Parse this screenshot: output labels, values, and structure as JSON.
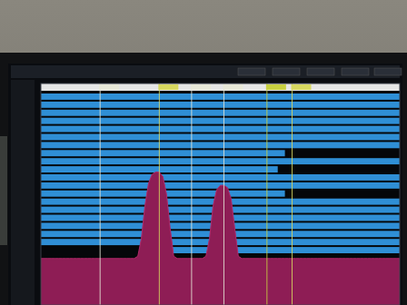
{
  "chart_data": {
    "type": "area",
    "x": [
      0,
      1,
      2,
      3,
      4,
      5,
      6,
      7,
      8,
      9,
      10,
      11,
      12,
      13,
      14,
      15,
      16,
      17,
      18,
      19,
      20,
      21,
      22,
      23,
      24,
      25,
      26,
      27,
      28,
      29,
      30,
      31,
      32,
      33,
      34,
      35,
      36,
      37,
      38,
      39,
      40,
      41,
      42,
      43,
      44,
      45,
      46,
      47,
      48,
      49,
      50,
      51,
      52,
      53,
      54,
      55,
      56,
      57,
      58,
      59,
      60,
      61,
      62,
      63,
      64,
      65,
      66,
      67,
      68,
      69,
      70,
      71,
      72,
      73,
      74,
      75,
      76,
      77,
      78,
      79,
      80,
      81,
      82,
      83,
      84,
      85,
      86,
      87,
      88,
      89,
      90,
      91,
      92,
      93,
      94,
      95,
      96,
      97,
      98,
      99,
      100
    ],
    "values": [
      21,
      21,
      21,
      21,
      21,
      21,
      21,
      21,
      21,
      21,
      21,
      21,
      21,
      21,
      21,
      21,
      21,
      21,
      21,
      21,
      21,
      21,
      21,
      21,
      21,
      21,
      21,
      22,
      30,
      45,
      55,
      59,
      60,
      60,
      58,
      50,
      35,
      22,
      21,
      21,
      21,
      21,
      21,
      21,
      21,
      21,
      22,
      30,
      45,
      52,
      54,
      54,
      53,
      48,
      35,
      22,
      21,
      21,
      21,
      21,
      21,
      21,
      21,
      21,
      21,
      21,
      21,
      21,
      21,
      21,
      21,
      21,
      21,
      21,
      21,
      21,
      21,
      21,
      21,
      21,
      21,
      21,
      21,
      21,
      21,
      21,
      21,
      21,
      21,
      21,
      21,
      21,
      21,
      21,
      21,
      21,
      21,
      21,
      21,
      21,
      21
    ],
    "color": "#8e1d55",
    "xlim": [
      0,
      100
    ],
    "ylim": [
      0,
      100
    ],
    "tick_labels": false,
    "grid": false,
    "rows": [
      {
        "segments": [
          [
            0,
            100
          ]
        ]
      },
      {
        "segments": [
          [
            0,
            100
          ]
        ]
      },
      {
        "segments": [
          [
            0,
            100
          ]
        ]
      },
      {
        "segments": [
          [
            0,
            100
          ]
        ]
      },
      {
        "segments": [
          [
            0,
            100
          ]
        ]
      },
      {
        "segments": [
          [
            0,
            100
          ]
        ]
      },
      {
        "segments": [
          [
            0,
            100
          ]
        ]
      },
      {
        "segments": [
          [
            0,
            68
          ]
        ]
      },
      {
        "segments": [
          [
            0,
            100
          ]
        ]
      },
      {
        "segments": [
          [
            0,
            66
          ]
        ]
      },
      {
        "segments": [
          [
            0,
            100
          ]
        ]
      },
      {
        "segments": [
          [
            0,
            100
          ]
        ]
      },
      {
        "segments": [
          [
            0,
            68
          ]
        ]
      },
      {
        "segments": [
          [
            0,
            100
          ]
        ]
      },
      {
        "segments": [
          [
            0,
            100
          ]
        ]
      },
      {
        "segments": [
          [
            0,
            100
          ]
        ]
      },
      {
        "segments": [
          [
            0,
            100
          ]
        ]
      },
      {
        "segments": [
          [
            0,
            100
          ]
        ]
      },
      {
        "segments": [
          [
            0,
            100
          ]
        ]
      },
      {
        "segments": [
          [
            28,
            100
          ]
        ]
      }
    ],
    "rows_color": "#2f8fd6",
    "marker_lines": {
      "x": [
        16.5,
        33,
        42,
        51,
        63,
        70
      ],
      "colors": [
        "#e8e8d8",
        "#d8d860",
        "#e8e8d8",
        "#e8e8d8",
        "#c8d040",
        "#d8d860"
      ]
    }
  }
}
